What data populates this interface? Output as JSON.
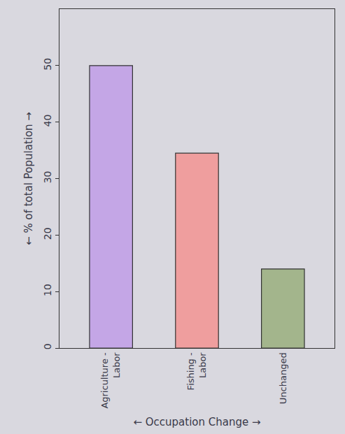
{
  "chart_data": {
    "type": "bar",
    "categories": [
      "Agriculture - Labor",
      "Fishing - Labor",
      "Unchanged"
    ],
    "values": [
      50,
      34.5,
      14
    ],
    "colors": [
      "#c4a6e6",
      "#ef9e9e",
      "#a3b58c"
    ],
    "xlabel": "← Occupation Change →",
    "ylabel": "← % of total Population →",
    "ylim": [
      0,
      60
    ],
    "yticks": [
      0,
      10,
      20,
      30,
      40,
      50
    ],
    "grid": false
  }
}
